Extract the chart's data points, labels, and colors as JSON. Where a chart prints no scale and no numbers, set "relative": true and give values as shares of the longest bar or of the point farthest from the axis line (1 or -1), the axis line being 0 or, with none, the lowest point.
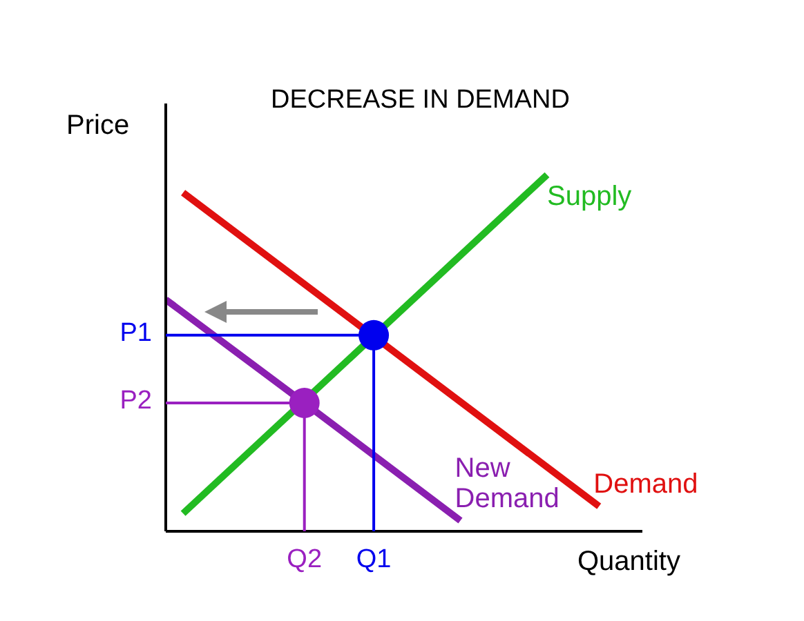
{
  "chart_data": {
    "type": "line",
    "title": "DECREASE IN DEMAND",
    "xlabel": "Quantity",
    "ylabel": "Price",
    "relative": true,
    "legend": false,
    "marker": "none",
    "categories": [
      null,
      null,
      null,
      null,
      null,
      null,
      null,
      null,
      "Q2",
      null,
      null,
      null,
      "Q1",
      null,
      null,
      null,
      null,
      null,
      null,
      null,
      null,
      null,
      null,
      null,
      null,
      null,
      null,
      null
    ],
    "annotations": [
      "P1",
      "P2"
    ],
    "series": [
      {
        "name": "Supply",
        "color": "#22bb22",
        "values": [
          null,
          0.05,
          null,
          null,
          null,
          null,
          null,
          null,
          null,
          null,
          null,
          null,
          null,
          null,
          null,
          null,
          null,
          null,
          null,
          null,
          null,
          null,
          1,
          null,
          null,
          null,
          null,
          null
        ]
      },
      {
        "name": "Demand",
        "color": "#e01010",
        "values": [
          null,
          0.95,
          null,
          null,
          null,
          null,
          null,
          null,
          null,
          null,
          null,
          null,
          null,
          null,
          null,
          null,
          null,
          null,
          null,
          null,
          null,
          null,
          null,
          null,
          null,
          0.07,
          null,
          null
        ]
      },
      {
        "name": "New Demand",
        "color": "#8a1fb0",
        "values": [
          0.65,
          null,
          null,
          null,
          null,
          null,
          null,
          null,
          0.36,
          null,
          null,
          null,
          null,
          null,
          null,
          null,
          null,
          0.03,
          null,
          null,
          null,
          null,
          null,
          null,
          null,
          null,
          null,
          null
        ]
      },
      {
        "type": "scatter",
        "marker": "circle",
        "color": "#0000ee",
        "x": [
          "Q1"
        ],
        "values": [
          0.55
        ]
      },
      {
        "type": "scatter",
        "marker": "circle",
        "color": "#9a20c0",
        "x": [
          "Q2"
        ],
        "values": [
          0.36
        ]
      }
    ]
  }
}
